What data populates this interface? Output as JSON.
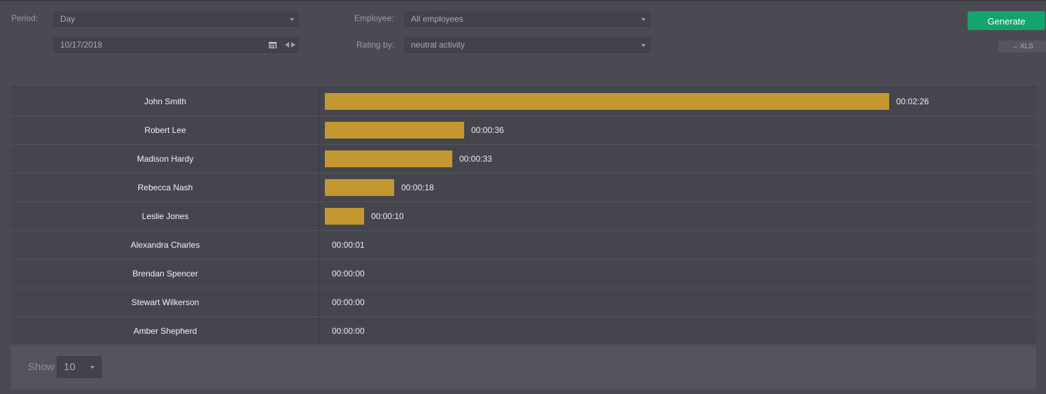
{
  "filters": {
    "period_label": "Period:",
    "period_value": "Day",
    "date_value": "10/17/2018",
    "employee_label": "Employee:",
    "employee_value": "All employees",
    "rating_label": "Rating by:",
    "rating_value": "neutral activity"
  },
  "actions": {
    "generate_label": "Generate",
    "xls_label": "→ XLS"
  },
  "colors": {
    "bar": "#c49830",
    "generate_button": "#13a36b"
  },
  "chart_data": {
    "type": "bar",
    "orientation": "horizontal",
    "categories": [
      "John Smith",
      "Robert Lee",
      "Madison Hardy",
      "Rebecca Nash",
      "Leslie Jones",
      "Alexandra Charles",
      "Brendan Spencer",
      "Stewart Wilkerson",
      "Amber Shepherd"
    ],
    "values": [
      146,
      36,
      33,
      18,
      10,
      1,
      0,
      0,
      0
    ],
    "labels": [
      "00:02:26",
      "00:00:36",
      "00:00:33",
      "00:00:18",
      "00:00:10",
      "00:00:01",
      "00:00:00",
      "00:00:00",
      "00:00:00"
    ],
    "value_unit": "seconds"
  },
  "pagination": {
    "show_label": "Show",
    "page_size": "10"
  }
}
